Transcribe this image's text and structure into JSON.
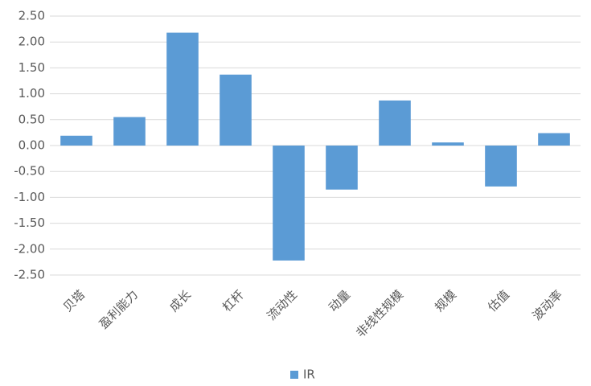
{
  "chart_data": {
    "type": "bar",
    "categories": [
      "贝塔",
      "盈利能力",
      "成长",
      "杠杆",
      "流动性",
      "动量",
      "非线性规模",
      "规模",
      "估值",
      "波动率"
    ],
    "series": [
      {
        "name": "IR",
        "color": "#5b9bd5",
        "values": [
          0.19,
          0.55,
          2.18,
          1.37,
          -2.22,
          -0.85,
          0.87,
          0.06,
          -0.79,
          0.24
        ]
      }
    ],
    "ylim": [
      -2.5,
      2.5
    ],
    "yticks": [
      {
        "value": -2.5,
        "label": "-2.50"
      },
      {
        "value": -2,
        "label": "-2.00"
      },
      {
        "value": -1.5,
        "label": "-1.50"
      },
      {
        "value": -1,
        "label": "-1.00"
      },
      {
        "value": -0.5,
        "label": "-0.50"
      },
      {
        "value": 0,
        "label": "0.00"
      },
      {
        "value": 0.5,
        "label": "0.50"
      },
      {
        "value": 1,
        "label": "1.00"
      },
      {
        "value": 1.5,
        "label": "1.50"
      },
      {
        "value": 2,
        "label": "2.00"
      },
      {
        "value": 2.5,
        "label": "2.50"
      }
    ],
    "grid": true,
    "legend": "bottom"
  }
}
